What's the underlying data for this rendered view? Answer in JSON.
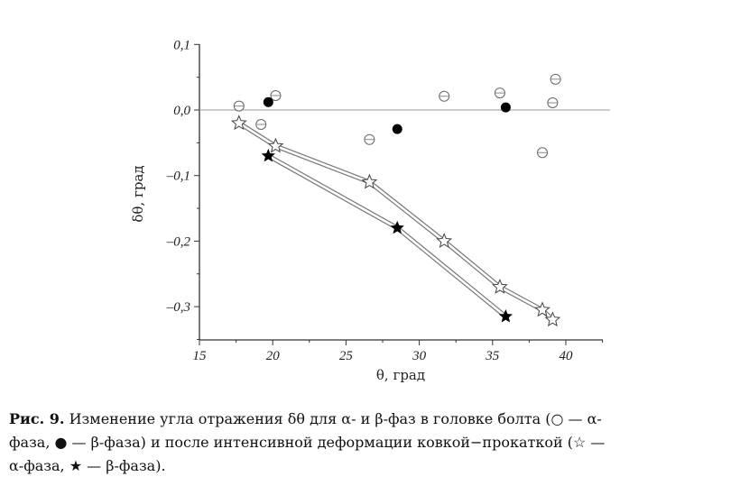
{
  "chart_data": {
    "type": "scatter",
    "xlabel": "θ, град",
    "ylabel": "δθ, град",
    "xlim": [
      15,
      42.7
    ],
    "ylim": [
      -0.35,
      0.1
    ],
    "xticks": [
      15,
      20,
      25,
      30,
      35,
      40
    ],
    "xtick_labels": [
      "15",
      "20",
      "25",
      "30",
      "35",
      "40"
    ],
    "yticks": [
      0.1,
      0.0,
      -0.1,
      -0.2,
      -0.3
    ],
    "ytick_labels": [
      "0,1",
      "0,0",
      "–0,1",
      "–0,2",
      "–0,3"
    ],
    "reference_line_y": 0,
    "grid": false,
    "series": [
      {
        "marker": "open-circle",
        "connected": false,
        "x": [
          17.7,
          19.2,
          20.2,
          26.6,
          31.7,
          35.5,
          38.4,
          39.1,
          39.3
        ],
        "y": [
          0.006,
          -0.022,
          0.022,
          -0.045,
          0.021,
          0.026,
          -0.065,
          0.011,
          0.047
        ]
      },
      {
        "marker": "filled-circle",
        "connected": false,
        "x": [
          19.7,
          28.5,
          35.9
        ],
        "y": [
          0.012,
          -0.029,
          0.004
        ]
      },
      {
        "marker": "open-star",
        "connected": true,
        "x": [
          17.7,
          20.2,
          26.6,
          31.7,
          35.5,
          38.4,
          39.1
        ],
        "y": [
          -0.02,
          -0.055,
          -0.11,
          -0.2,
          -0.27,
          -0.305,
          -0.32
        ]
      },
      {
        "marker": "filled-star",
        "connected": true,
        "x": [
          19.7,
          28.5,
          35.9
        ],
        "y": [
          -0.07,
          -0.18,
          -0.315
        ]
      }
    ]
  },
  "caption": {
    "label": "Рис. 9.",
    "line1": " Изменение угла отражения δθ для α- и β-фаз в головке болта (○ — α-",
    "line2": "фаза, ● — β-фаза) и после интенсивной деформации ковкой−прокаткой (☆ —",
    "line3": "α-фаза, ★ — β-фаза)."
  }
}
